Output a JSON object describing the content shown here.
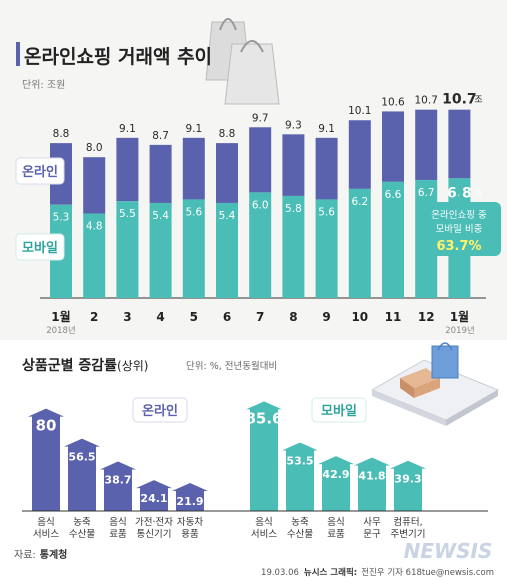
{
  "title": "온라인쇼핑 거래액 추이",
  "unit": "단위: 조원",
  "legend": {
    "online": "온라인",
    "mobile": "모바일"
  },
  "colors": {
    "online": "#5b62ad",
    "mobile": "#49bdb6",
    "online_light": "#7c82c2",
    "mobile_light": "#79cfc9"
  },
  "callout": {
    "line1": "온라인쇼핑 중",
    "line2": "모바일 비중",
    "value": "63.7%"
  },
  "unit_suffix": "조",
  "year_start": "2018년",
  "year_end": "2019년",
  "section2_title": "상품군별 증감률",
  "section2_title_sub": "(상위)",
  "section2_unit": "단위: %, 전년동월대비",
  "badge_online": "온라인",
  "badge_mobile": "모바일",
  "source_label": "자료:",
  "source_name": "통계청",
  "credit_date": "19.03.06",
  "credit_agency": "뉴시스 그래픽:",
  "credit_name": "전진우 기자 618tue@newsis.com",
  "watermark": "NEWSIS",
  "chart_data": [
    {
      "type": "bar",
      "categories": [
        "1월",
        "2",
        "3",
        "4",
        "5",
        "6",
        "7",
        "8",
        "9",
        "10",
        "11",
        "12",
        "1월"
      ],
      "series": [
        {
          "name": "온라인",
          "values": [
            8.8,
            8.0,
            9.1,
            8.7,
            9.1,
            8.8,
            9.7,
            9.3,
            9.1,
            10.1,
            10.6,
            10.7,
            10.7
          ]
        },
        {
          "name": "모바일",
          "values": [
            5.3,
            4.8,
            5.5,
            5.4,
            5.6,
            5.4,
            6.0,
            5.8,
            5.6,
            6.2,
            6.6,
            6.7,
            6.8
          ]
        }
      ],
      "value_labels_total": [
        "8.8",
        "8.0",
        "9.1",
        "8.7",
        "9.1",
        "8.8",
        "9.7",
        "9.3",
        "9.1",
        "10.1",
        "10.6",
        "10.7",
        "10.7"
      ],
      "value_labels_mobile": [
        "5.3",
        "4.8",
        "5.5",
        "5.4",
        "5.6",
        "5.4",
        "6.0",
        "5.8",
        "5.6",
        "6.2",
        "6.6",
        "6.7",
        "6.8"
      ],
      "ylim": [
        0,
        11.2
      ]
    },
    {
      "type": "bar",
      "name": "온라인",
      "categories": [
        [
          "음식",
          "서비스"
        ],
        [
          "농축",
          "수산물"
        ],
        [
          "음식",
          "료품"
        ],
        [
          "가전·전자",
          "통신기기"
        ],
        [
          "자동차",
          "용품"
        ]
      ],
      "values": [
        80,
        56.5,
        38.7,
        24.1,
        21.9
      ],
      "value_labels": [
        "80",
        "56.5",
        "38.7",
        "24.1",
        "21.9"
      ]
    },
    {
      "type": "bar",
      "name": "모바일",
      "categories": [
        [
          "음식",
          "서비스"
        ],
        [
          "농축",
          "수산물"
        ],
        [
          "음식",
          "료품"
        ],
        [
          "사무",
          "문구"
        ],
        [
          "컴퓨터,",
          "주변기기"
        ]
      ],
      "values": [
        85.6,
        53.5,
        42.9,
        41.8,
        39.3
      ],
      "value_labels": [
        "85.6",
        "53.5",
        "42.9",
        "41.8",
        "39.3"
      ]
    }
  ]
}
